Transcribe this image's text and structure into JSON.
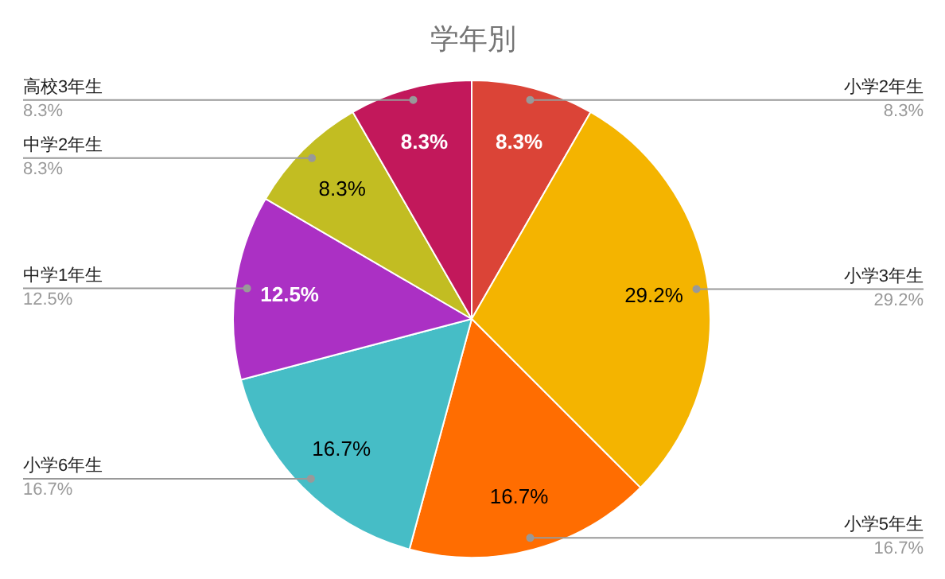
{
  "chart_data": {
    "type": "pie",
    "title": "学年別",
    "categories": [
      "小学2年生",
      "小学3年生",
      "小学5年生",
      "小学6年生",
      "中学1年生",
      "中学2年生",
      "高校3年生"
    ],
    "values": [
      8.3,
      29.2,
      16.7,
      16.7,
      12.5,
      8.3,
      8.3
    ],
    "colors": [
      "#db4437",
      "#f4b400",
      "#ff6d01",
      "#46bdc6",
      "#ab30c4",
      "#c2bd22",
      "#c2185b"
    ],
    "value_labels": [
      "8.3%",
      "29.2%",
      "16.7%",
      "16.7%",
      "12.5%",
      "8.3%",
      "8.3%"
    ]
  }
}
